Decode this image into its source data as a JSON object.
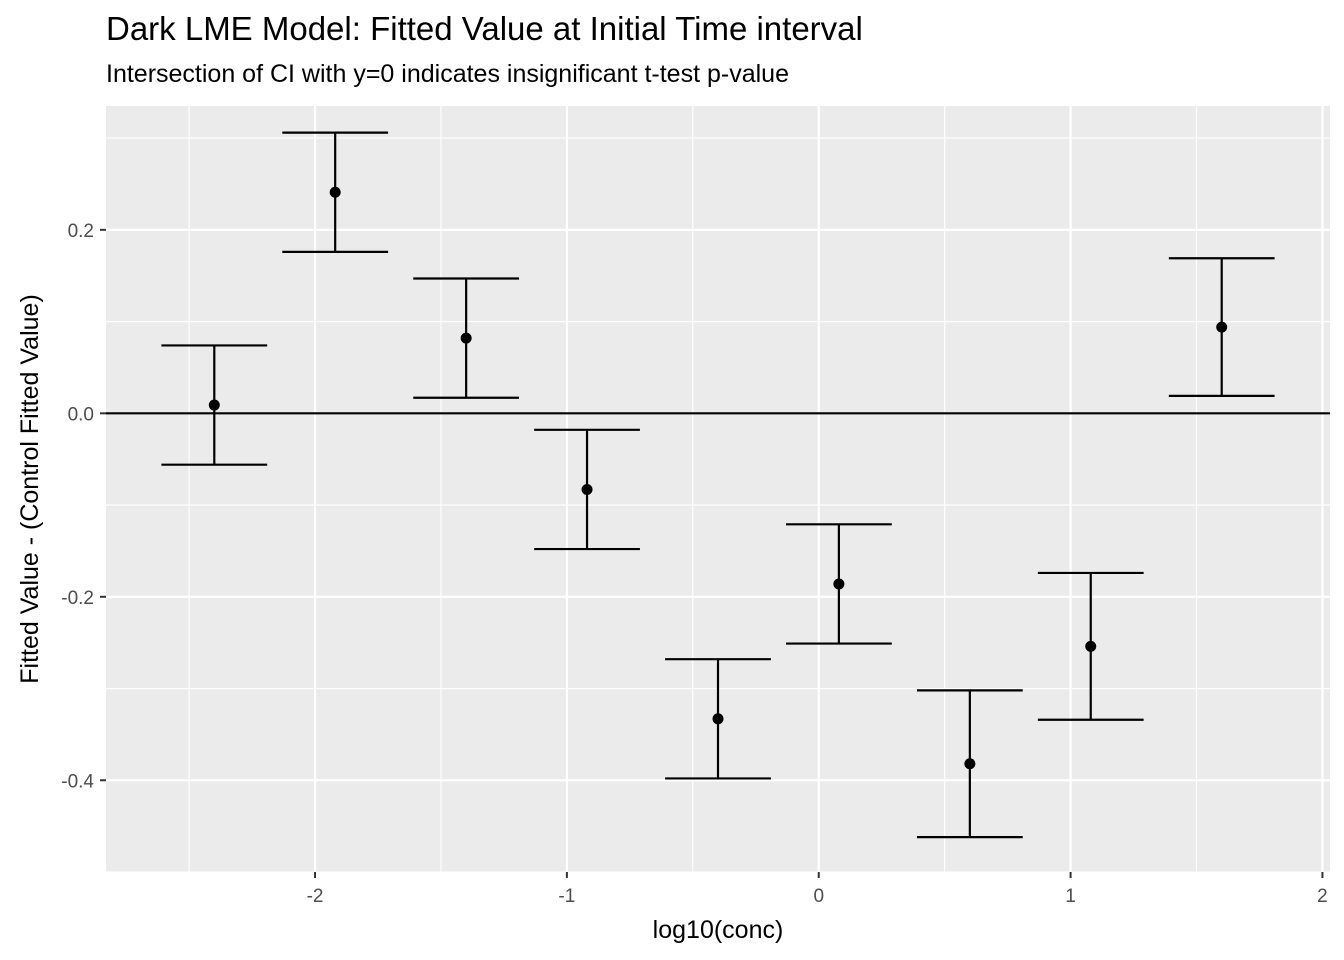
{
  "chart_data": {
    "type": "scatter",
    "title": "Dark LME Model: Fitted Value at Initial Time interval",
    "subtitle": "Intersection of CI with y=0 indicates insignificant t-test p-value",
    "xlabel": "log10(conc)",
    "ylabel": "Fitted Value - (Control Fitted Value)",
    "xlim": [
      -2.83,
      2.03
    ],
    "ylim": [
      -0.5,
      0.335
    ],
    "x_ticks": [
      -2,
      -1,
      0,
      1,
      2
    ],
    "x_tick_labels": [
      "-2",
      "-1",
      "0",
      "1",
      "2"
    ],
    "y_ticks": [
      -0.4,
      -0.2,
      0.0,
      0.2
    ],
    "y_tick_labels": [
      "-0.4",
      "-0.2",
      "0.0",
      "0.2"
    ],
    "reference_line_y": 0,
    "grid": true,
    "error_bar_halfwidth": 0.21,
    "points": [
      {
        "x": -2.4,
        "y": 0.009,
        "lower": -0.056,
        "upper": 0.074
      },
      {
        "x": -1.92,
        "y": 0.241,
        "lower": 0.176,
        "upper": 0.306
      },
      {
        "x": -1.4,
        "y": 0.082,
        "lower": 0.017,
        "upper": 0.147
      },
      {
        "x": -0.92,
        "y": -0.083,
        "lower": -0.148,
        "upper": -0.018
      },
      {
        "x": -0.4,
        "y": -0.333,
        "lower": -0.398,
        "upper": -0.268
      },
      {
        "x": 0.08,
        "y": -0.186,
        "lower": -0.251,
        "upper": -0.121
      },
      {
        "x": 0.6,
        "y": -0.382,
        "lower": -0.462,
        "upper": -0.302
      },
      {
        "x": 1.08,
        "y": -0.254,
        "lower": -0.334,
        "upper": -0.174
      },
      {
        "x": 1.6,
        "y": 0.094,
        "lower": 0.019,
        "upper": 0.169
      }
    ]
  },
  "colors": {
    "panel_background": "#ebebeb",
    "grid_major": "#ffffff",
    "grid_minor": "#f7f7f7",
    "marks": "#000000",
    "tick_text": "#4d4d4d"
  }
}
